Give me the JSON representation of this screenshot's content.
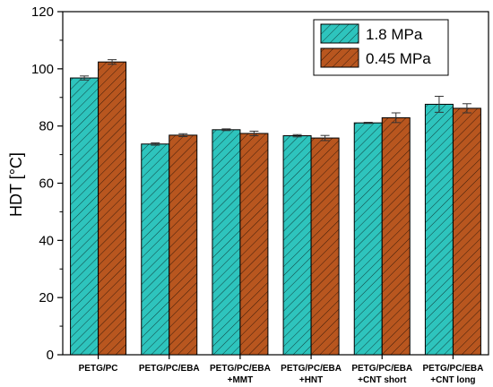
{
  "chart_data": {
    "type": "bar",
    "title": "",
    "xlabel": "",
    "ylabel": "HDT [°C]",
    "ylim": [
      0,
      120
    ],
    "yticks": [
      0,
      20,
      40,
      60,
      80,
      100,
      120
    ],
    "grid": false,
    "legend_position": "top-right",
    "error_bars": true,
    "categories": [
      [
        "PETG/PC"
      ],
      [
        "PETG/PC/EBA"
      ],
      [
        "PETG/PC/EBA",
        "+MMT"
      ],
      [
        "PETG/PC/EBA",
        "+HNT"
      ],
      [
        "PETG/PC/EBA",
        "+CNT short"
      ],
      [
        "PETG/PC/EBA",
        "+CNT long"
      ]
    ],
    "series": [
      {
        "name": "1.8 MPa",
        "color": "#2ec4bd",
        "values": [
          96.8,
          73.7,
          78.7,
          76.6,
          81.1,
          87.6
        ],
        "errors": [
          0.7,
          0.4,
          0.3,
          0.4,
          0.2,
          2.8
        ]
      },
      {
        "name": "0.45 MPa",
        "color": "#b8561f",
        "values": [
          102.4,
          76.8,
          77.4,
          75.8,
          82.9,
          86.2
        ],
        "errors": [
          0.8,
          0.5,
          0.8,
          0.9,
          1.7,
          1.6
        ]
      }
    ]
  }
}
